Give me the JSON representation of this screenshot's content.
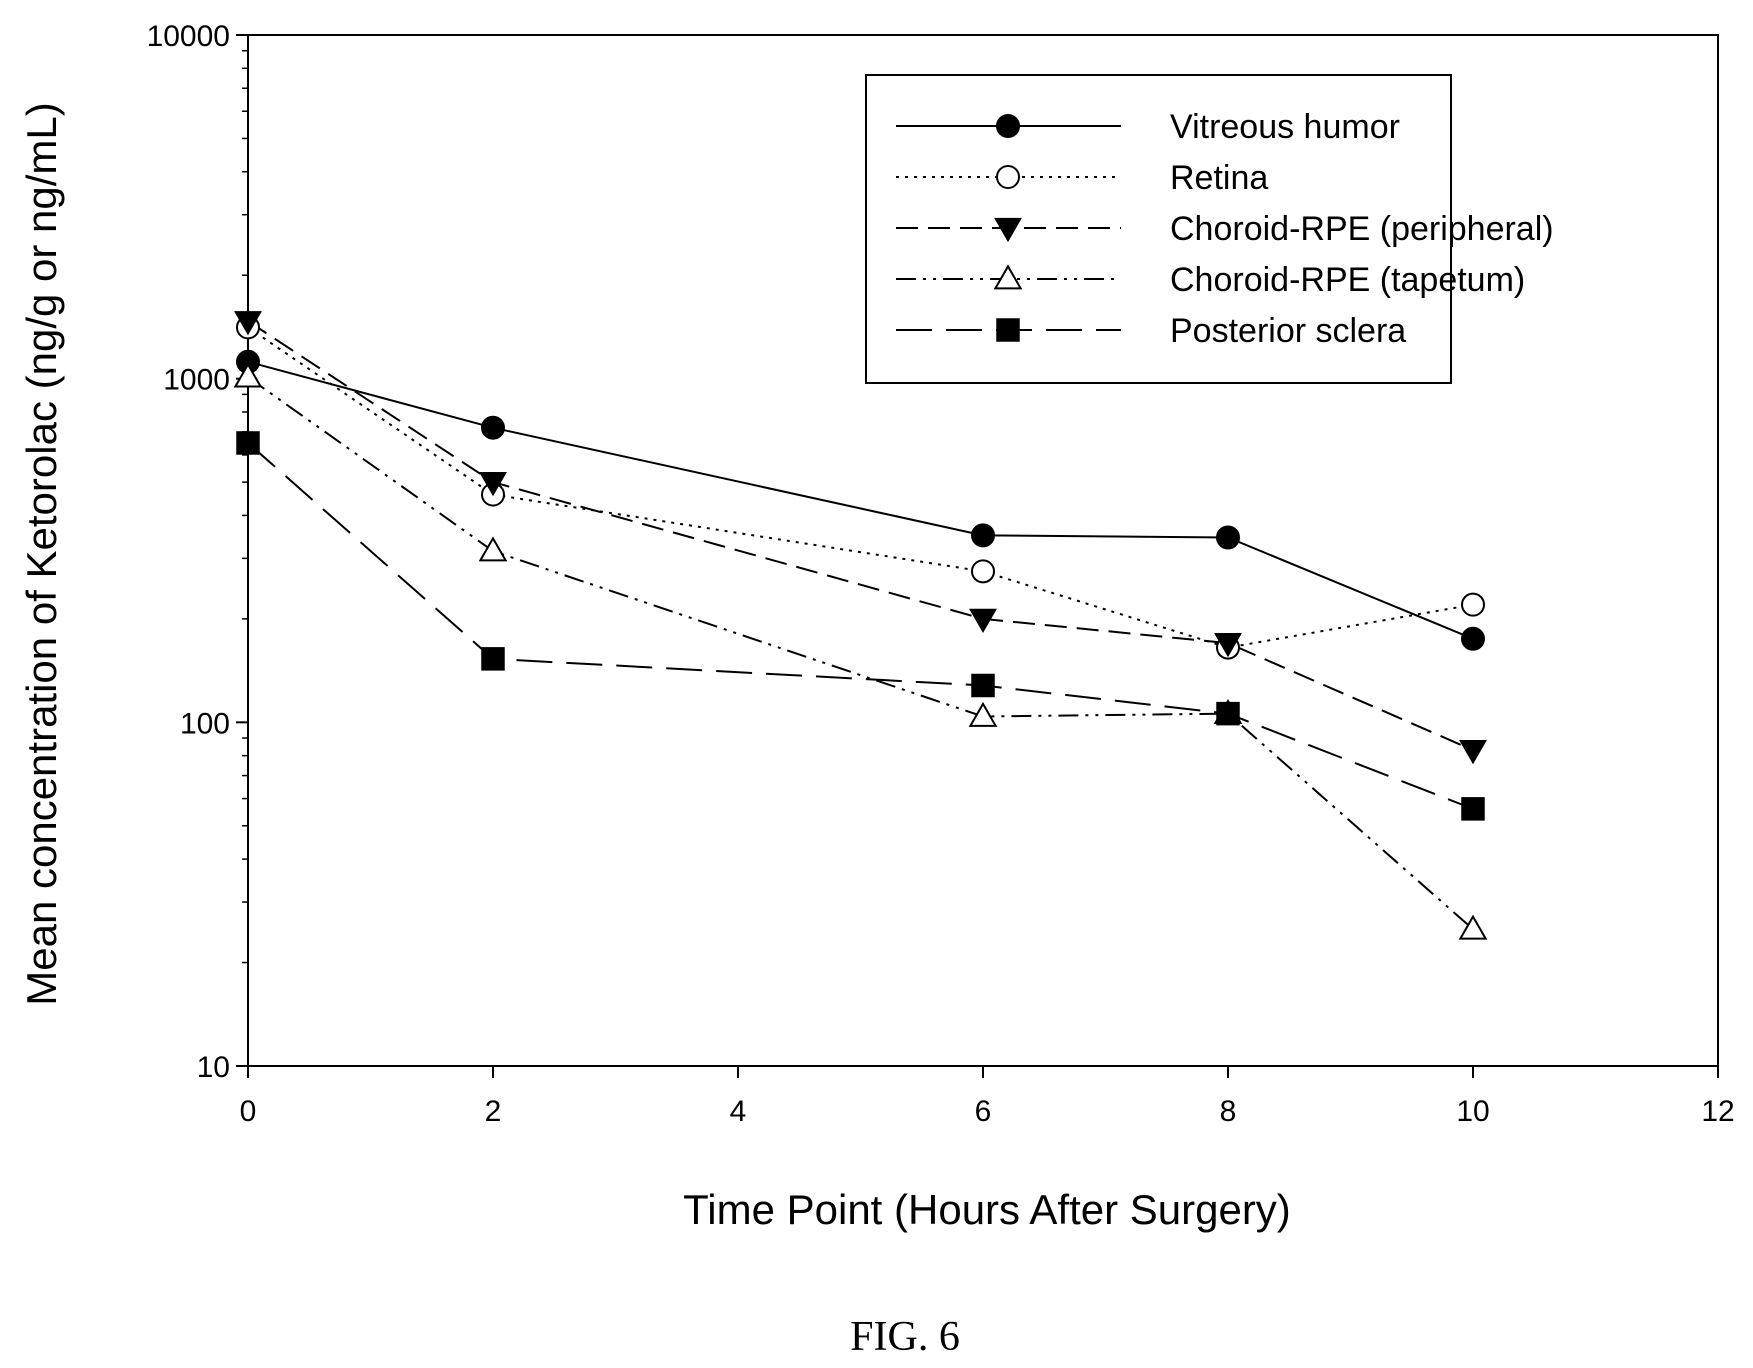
{
  "figure": {
    "caption": "FIG. 6"
  },
  "chart_data": {
    "type": "line",
    "title": "",
    "xlabel": "Time Point (Hours After Surgery)",
    "ylabel": "Mean concentration of Ketorolac (ng/g or ng/mL)",
    "xlim": [
      0,
      12
    ],
    "ylim": [
      10,
      10000
    ],
    "yscale": "log",
    "xticks": [
      "0",
      "2",
      "4",
      "6",
      "8",
      "10",
      "12"
    ],
    "yticks": [
      "10",
      "100",
      "1000",
      "10000"
    ],
    "grid": false,
    "legend_position": "top-right",
    "series": [
      {
        "name": "Vitreous humor",
        "marker": "filled-circle",
        "line": "solid",
        "x": [
          0,
          2,
          6,
          8,
          10
        ],
        "y": [
          1120,
          720,
          350,
          345,
          175
        ]
      },
      {
        "name": "Retina",
        "marker": "open-circle",
        "line": "dotted",
        "x": [
          0,
          2,
          6,
          8,
          10
        ],
        "y": [
          1410,
          460,
          275,
          165,
          220
        ]
      },
      {
        "name": "Choroid-RPE (peripheral)",
        "marker": "filled-triangle-down",
        "line": "dashed",
        "x": [
          0,
          2,
          6,
          8,
          10
        ],
        "y": [
          1470,
          500,
          200,
          170,
          83
        ]
      },
      {
        "name": "Choroid-RPE (tapetum)",
        "marker": "open-triangle-up",
        "line": "dash-dot-dot",
        "x": [
          0,
          2,
          6,
          8,
          10
        ],
        "y": [
          1010,
          315,
          104,
          106,
          25
        ]
      },
      {
        "name": "Posterior sclera",
        "marker": "filled-square",
        "line": "long-dash",
        "x": [
          0,
          2,
          6,
          8,
          10
        ],
        "y": [
          650,
          153,
          128,
          106,
          56
        ]
      }
    ]
  }
}
